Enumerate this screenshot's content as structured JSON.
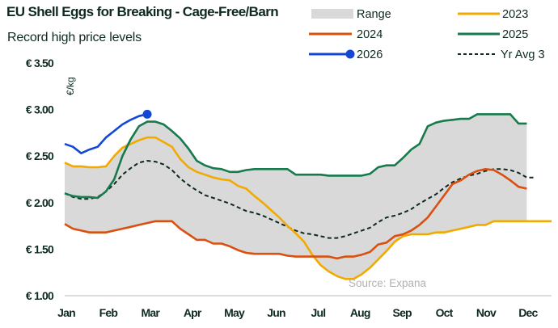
{
  "chart_data": {
    "type": "line",
    "title": "EU Shell Eggs for Breaking - Cage-Free/Barn",
    "subtitle": "Record high price levels",
    "ylabel": "€/kg",
    "xlabel": "",
    "source": "Source: Expana",
    "ylim": [
      1.0,
      3.5
    ],
    "yticks": [
      1.0,
      1.5,
      2.0,
      2.5,
      3.0,
      3.5
    ],
    "ytick_labels": [
      "€ 1.00",
      "€ 1.50",
      "€ 2.00",
      "€ 2.50",
      "€ 3.00",
      "€ 3.50"
    ],
    "x_unit": "week",
    "xlim": [
      1,
      53
    ],
    "month_labels": [
      "Jan",
      "Feb",
      "Mar",
      "Apr",
      "May",
      "Jun",
      "Jul",
      "Aug",
      "Sep",
      "Oct",
      "Nov",
      "Dec"
    ],
    "grid": false,
    "legend_position": "top-right",
    "legend": [
      "Range",
      "2023",
      "2024",
      "2025",
      "2026",
      "Yr Avg 3"
    ],
    "colors": {
      "range": "#d9d9d9",
      "2023": "#f2a900",
      "2024": "#d9500f",
      "2025": "#167a4c",
      "2026": "#1447d6",
      "avg": "#0e2a1e"
    },
    "series": [
      {
        "name": "2023",
        "values": [
          2.43,
          2.39,
          2.39,
          2.38,
          2.38,
          2.39,
          2.5,
          2.59,
          2.63,
          2.67,
          2.7,
          2.7,
          2.65,
          2.6,
          2.47,
          2.38,
          2.33,
          2.3,
          2.27,
          2.25,
          2.24,
          2.18,
          2.15,
          2.07,
          2.0,
          1.92,
          1.84,
          1.75,
          1.67,
          1.58,
          1.44,
          1.33,
          1.26,
          1.21,
          1.18,
          1.18,
          1.23,
          1.3,
          1.39,
          1.48,
          1.58,
          1.64,
          1.66,
          1.66,
          1.66,
          1.68,
          1.68,
          1.7,
          1.72,
          1.74,
          1.76,
          1.76,
          1.8,
          1.8,
          1.8,
          1.8,
          1.8,
          1.8,
          1.8,
          1.8
        ]
      },
      {
        "name": "2024",
        "values": [
          1.77,
          1.72,
          1.7,
          1.68,
          1.68,
          1.68,
          1.7,
          1.72,
          1.74,
          1.76,
          1.78,
          1.8,
          1.8,
          1.8,
          1.72,
          1.66,
          1.6,
          1.6,
          1.56,
          1.56,
          1.53,
          1.49,
          1.46,
          1.45,
          1.45,
          1.45,
          1.45,
          1.43,
          1.42,
          1.42,
          1.42,
          1.42,
          1.42,
          1.4,
          1.42,
          1.42,
          1.44,
          1.47,
          1.55,
          1.57,
          1.64,
          1.66,
          1.7,
          1.76,
          1.84,
          1.96,
          2.08,
          2.2,
          2.24,
          2.3,
          2.34,
          2.36,
          2.35,
          2.3,
          2.24,
          2.17,
          2.15
        ]
      },
      {
        "name": "2025",
        "values": [
          2.1,
          2.07,
          2.06,
          2.06,
          2.05,
          2.12,
          2.25,
          2.5,
          2.68,
          2.82,
          2.87,
          2.87,
          2.84,
          2.77,
          2.69,
          2.58,
          2.45,
          2.4,
          2.37,
          2.36,
          2.33,
          2.33,
          2.35,
          2.36,
          2.36,
          2.36,
          2.36,
          2.36,
          2.3,
          2.3,
          2.3,
          2.3,
          2.29,
          2.29,
          2.29,
          2.29,
          2.29,
          2.31,
          2.38,
          2.4,
          2.4,
          2.48,
          2.57,
          2.63,
          2.82,
          2.86,
          2.88,
          2.89,
          2.9,
          2.9,
          2.95,
          2.95,
          2.95,
          2.95,
          2.95,
          2.85,
          2.85
        ]
      },
      {
        "name": "2026",
        "values": [
          2.63,
          2.6,
          2.53,
          2.57,
          2.6,
          2.7,
          2.77,
          2.84,
          2.89,
          2.93,
          2.95
        ]
      },
      {
        "name": "Yr Avg 3",
        "values": [
          2.1,
          2.06,
          2.04,
          2.04,
          2.06,
          2.12,
          2.2,
          2.3,
          2.37,
          2.43,
          2.45,
          2.44,
          2.41,
          2.35,
          2.26,
          2.19,
          2.13,
          2.08,
          2.05,
          2.02,
          1.99,
          1.95,
          1.91,
          1.89,
          1.86,
          1.82,
          1.78,
          1.74,
          1.7,
          1.67,
          1.66,
          1.64,
          1.62,
          1.62,
          1.64,
          1.67,
          1.7,
          1.73,
          1.79,
          1.84,
          1.86,
          1.89,
          1.93,
          1.99,
          2.04,
          2.09,
          2.16,
          2.22,
          2.26,
          2.29,
          2.31,
          2.34,
          2.36,
          2.36,
          2.35,
          2.32,
          2.27,
          2.27
        ]
      }
    ]
  }
}
